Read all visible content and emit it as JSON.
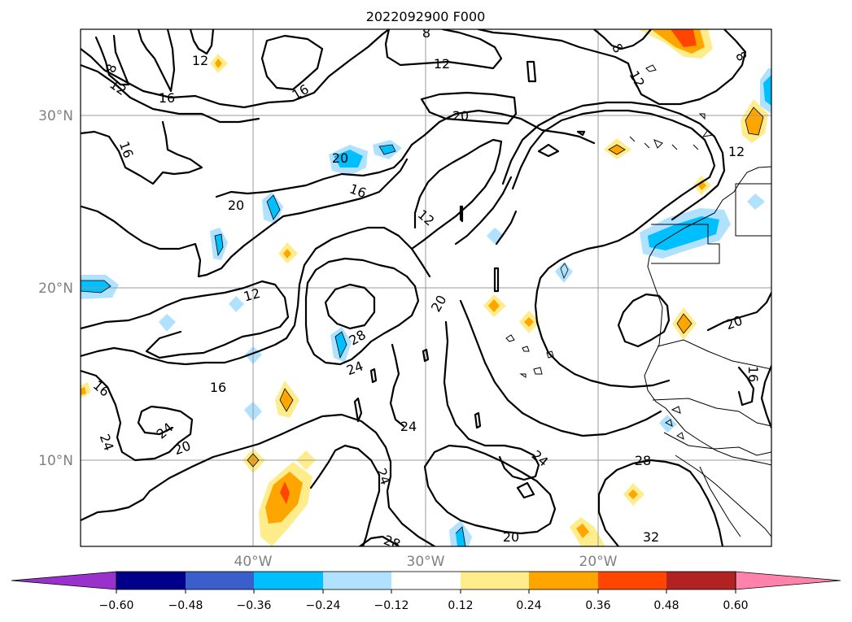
{
  "title": "2022092900 F000",
  "lat_labels": [
    "30°N",
    "20°N",
    "10°N"
  ],
  "lon_labels": [
    "40°W",
    "30°W",
    "20°W"
  ],
  "contour_labels": [
    "8",
    "8",
    "8",
    "8",
    "12",
    "12",
    "12",
    "12",
    "12",
    "12",
    "12",
    "16",
    "16",
    "16",
    "16",
    "16",
    "16",
    "16",
    "20",
    "20",
    "20",
    "20",
    "20",
    "20",
    "20",
    "24",
    "24",
    "24",
    "24",
    "24",
    "24",
    "28",
    "28",
    "28",
    "32"
  ],
  "colorbar": {
    "tick_labels": [
      "−0.60",
      "−0.48",
      "−0.36",
      "−0.24",
      "−0.12",
      "0.12",
      "0.24",
      "0.36",
      "0.48",
      "0.60"
    ],
    "colors": [
      "#9932cc",
      "#00008b",
      "#3a5fcd",
      "#00bfff",
      "#b0e2ff",
      "#ffffff",
      "#ffec8b",
      "#ffa500",
      "#ff4500",
      "#b22222",
      "#ff82ab"
    ]
  },
  "fill_colors": {
    "light_yellow": "#ffec8b",
    "orange": "#ffa500",
    "red_orange": "#ff4500",
    "deep_sky_blue": "#00bfff",
    "light_sky_blue": "#b0e2ff"
  }
}
